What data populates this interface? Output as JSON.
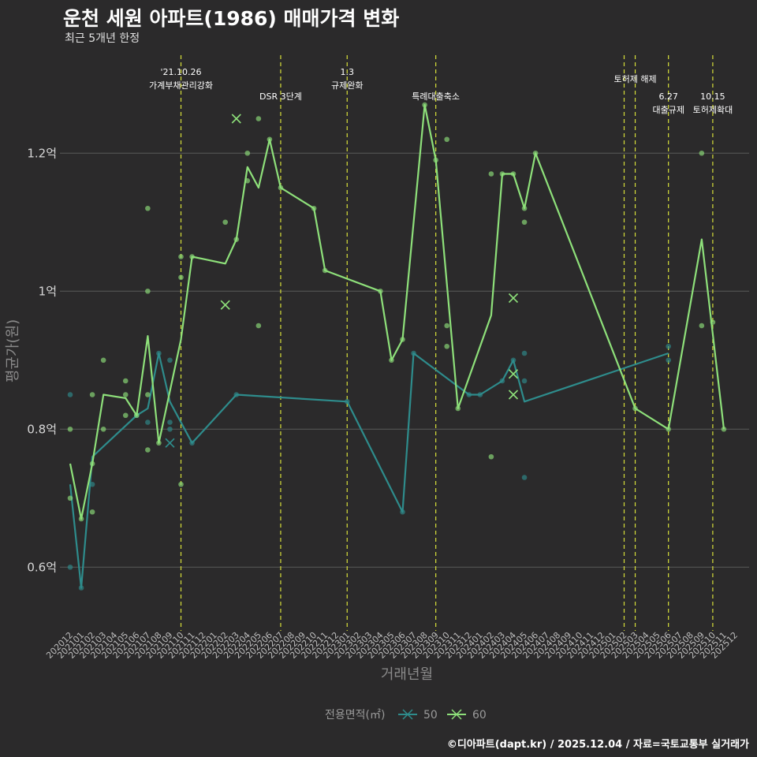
{
  "title": "운천 세원 아파트(1986) 매매가격 변화",
  "subtitle": "최근 5개년 한정",
  "credit": "©디아파트(dapt.kr) / 2025.12.04 / 자료=국토교통부 실거래가",
  "colors": {
    "background": "#2b2a2b",
    "grid": "#5a5a5a",
    "vline": "#d8e03a",
    "series50": "#2e8c8c",
    "series60": "#8ee07a"
  },
  "chart_data": {
    "type": "line",
    "title": "운천 세원 아파트(1986) 매매가격 변화",
    "xlabel": "거래년월",
    "ylabel": "평균가(원)",
    "ylim": [
      0.51,
      1.31
    ],
    "yticks": [
      {
        "value": 0.6,
        "label": "0.6억"
      },
      {
        "value": 0.8,
        "label": "0.8억"
      },
      {
        "value": 1.0,
        "label": "1억"
      },
      {
        "value": 1.2,
        "label": "1.2억"
      }
    ],
    "categories": [
      "202012",
      "202101",
      "202102",
      "202103",
      "202104",
      "202105",
      "202106",
      "202107",
      "202108",
      "202109",
      "202110",
      "202111",
      "202112",
      "202201",
      "202202",
      "202203",
      "202204",
      "202205",
      "202206",
      "202207",
      "202208",
      "202209",
      "202210",
      "202211",
      "202212",
      "202301",
      "202302",
      "202303",
      "202304",
      "202305",
      "202306",
      "202307",
      "202308",
      "202309",
      "202310",
      "202311",
      "202312",
      "202401",
      "202402",
      "202403",
      "202404",
      "202405",
      "202406",
      "202407",
      "202408",
      "202409",
      "202410",
      "202411",
      "202412",
      "202501",
      "202502",
      "202503",
      "202504",
      "202505",
      "202506",
      "202507",
      "202508",
      "202509",
      "202510",
      "202511",
      "202512"
    ],
    "legend_title": "전용면적(㎡)",
    "series": [
      {
        "name": "50",
        "color": "#2e8c8c",
        "line": [
          [
            0,
            0.72
          ],
          [
            1,
            0.57
          ],
          [
            2,
            0.76
          ],
          [
            6,
            0.82
          ],
          [
            7,
            0.83
          ],
          [
            8,
            0.91
          ],
          [
            9,
            0.84
          ],
          [
            11,
            0.78
          ],
          [
            15,
            0.85
          ],
          [
            25,
            0.84
          ],
          [
            30,
            0.68
          ],
          [
            31,
            0.91
          ],
          [
            36,
            0.85
          ],
          [
            37,
            0.85
          ],
          [
            39,
            0.87
          ],
          [
            40,
            0.9
          ],
          [
            41,
            0.84
          ],
          [
            54,
            0.91
          ]
        ],
        "points": [
          [
            0,
            0.85
          ],
          [
            0,
            0.6
          ],
          [
            1,
            0.57
          ],
          [
            2,
            0.72
          ],
          [
            6,
            0.82
          ],
          [
            7,
            0.81
          ],
          [
            8,
            0.91
          ],
          [
            9,
            0.9
          ],
          [
            9,
            0.81
          ],
          [
            9,
            0.8
          ],
          [
            11,
            0.78
          ],
          [
            15,
            0.85
          ],
          [
            25,
            0.84
          ],
          [
            30,
            0.68
          ],
          [
            31,
            0.91
          ],
          [
            36,
            0.85
          ],
          [
            37,
            0.85
          ],
          [
            39,
            0.87
          ],
          [
            40,
            0.9
          ],
          [
            41,
            0.91
          ],
          [
            41,
            0.87
          ],
          [
            41,
            0.73
          ],
          [
            54,
            0.92
          ],
          [
            54,
            0.9
          ]
        ],
        "crosses": [
          [
            9,
            0.78
          ]
        ]
      },
      {
        "name": "60",
        "color": "#8ee07a",
        "line": [
          [
            0,
            0.75
          ],
          [
            1,
            0.67
          ],
          [
            2,
            0.75
          ],
          [
            3,
            0.85
          ],
          [
            5,
            0.845
          ],
          [
            6,
            0.82
          ],
          [
            7,
            0.935
          ],
          [
            8,
            0.78
          ],
          [
            10,
            0.93
          ],
          [
            11,
            1.05
          ],
          [
            14,
            1.04
          ],
          [
            15,
            1.075
          ],
          [
            16,
            1.18
          ],
          [
            17,
            1.15
          ],
          [
            18,
            1.22
          ],
          [
            19,
            1.15
          ],
          [
            22,
            1.12
          ],
          [
            23,
            1.03
          ],
          [
            28,
            1.0
          ],
          [
            29,
            0.9
          ],
          [
            30,
            0.93
          ],
          [
            32,
            1.27
          ],
          [
            33,
            1.19
          ],
          [
            35,
            0.83
          ],
          [
            38,
            0.965
          ],
          [
            39,
            1.17
          ],
          [
            40,
            1.17
          ],
          [
            41,
            1.12
          ],
          [
            42,
            1.2
          ],
          [
            51,
            0.83
          ],
          [
            54,
            0.8
          ],
          [
            57,
            1.075
          ],
          [
            59,
            0.8
          ]
        ],
        "points": [
          [
            0,
            0.8
          ],
          [
            0,
            0.7
          ],
          [
            1,
            0.67
          ],
          [
            2,
            0.85
          ],
          [
            2,
            0.75
          ],
          [
            2,
            0.68
          ],
          [
            3,
            0.9
          ],
          [
            3,
            0.8
          ],
          [
            5,
            0.87
          ],
          [
            5,
            0.85
          ],
          [
            5,
            0.82
          ],
          [
            6,
            0.82
          ],
          [
            7,
            1.12
          ],
          [
            7,
            1.0
          ],
          [
            7,
            0.85
          ],
          [
            7,
            0.77
          ],
          [
            8,
            0.78
          ],
          [
            10,
            1.05
          ],
          [
            10,
            1.02
          ],
          [
            10,
            0.72
          ],
          [
            11,
            1.05
          ],
          [
            14,
            1.1
          ],
          [
            15,
            1.075
          ],
          [
            16,
            1.2
          ],
          [
            16,
            1.16
          ],
          [
            17,
            1.25
          ],
          [
            17,
            0.95
          ],
          [
            18,
            1.22
          ],
          [
            19,
            1.15
          ],
          [
            22,
            1.12
          ],
          [
            23,
            1.03
          ],
          [
            28,
            1.0
          ],
          [
            29,
            0.9
          ],
          [
            30,
            0.93
          ],
          [
            32,
            1.27
          ],
          [
            33,
            1.19
          ],
          [
            34,
            1.22
          ],
          [
            34,
            0.95
          ],
          [
            34,
            0.92
          ],
          [
            35,
            0.83
          ],
          [
            38,
            1.17
          ],
          [
            38,
            0.76
          ],
          [
            39,
            1.17
          ],
          [
            40,
            1.17
          ],
          [
            41,
            1.12
          ],
          [
            41,
            1.1
          ],
          [
            42,
            1.2
          ],
          [
            51,
            0.83
          ],
          [
            54,
            0.8
          ],
          [
            57,
            1.2
          ],
          [
            57,
            0.95
          ],
          [
            58,
            0.955
          ],
          [
            59,
            0.8
          ]
        ],
        "crosses": [
          [
            15,
            1.25
          ],
          [
            14,
            0.98
          ],
          [
            40,
            0.99
          ],
          [
            40,
            0.88
          ],
          [
            40,
            0.85
          ]
        ]
      }
    ],
    "events": [
      {
        "x": 10,
        "line1": "'21.10.26",
        "line2": "가계부채관리강화",
        "row": 0
      },
      {
        "x": 19,
        "line1": "",
        "line2": "DSR 3단계",
        "row": 1
      },
      {
        "x": 25,
        "line1": "1.3",
        "line2": "규제완화",
        "row": 0
      },
      {
        "x": 33,
        "line1": "",
        "line2": "특례대출축소",
        "row": 1
      },
      {
        "x": 50,
        "line1": "",
        "line2": "",
        "row": 0
      },
      {
        "x": 51,
        "line1": "",
        "line2": "토허제 해제",
        "row": 0
      },
      {
        "x": 54,
        "line1": "6.27",
        "line2": "대출규제",
        "row": 1
      },
      {
        "x": 58,
        "line1": "10.15",
        "line2": "토허제확대",
        "row": 1
      }
    ]
  }
}
